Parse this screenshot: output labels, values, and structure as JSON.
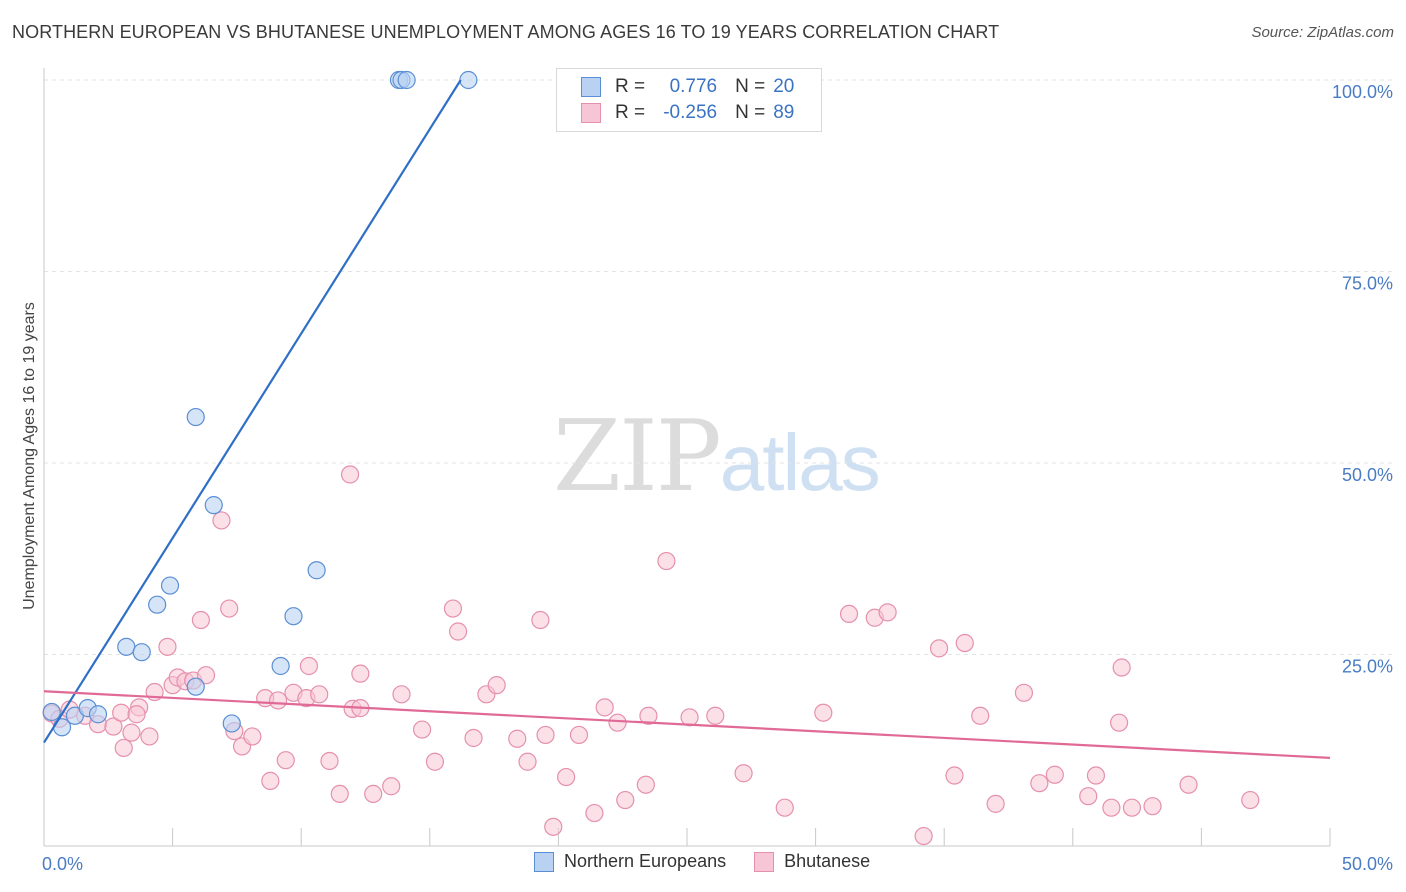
{
  "header": {
    "title": "NORTHERN EUROPEAN VS BHUTANESE UNEMPLOYMENT AMONG AGES 16 TO 19 YEARS CORRELATION CHART",
    "source": "Source: ZipAtlas.com"
  },
  "watermark": {
    "zip": "ZIP",
    "atlas": "atlas"
  },
  "legend_top": {
    "rows": [
      {
        "r_label": "R =",
        "r_value": "0.776",
        "n_label": "N =",
        "n_value": "20"
      },
      {
        "r_label": "R =",
        "r_value": "-0.256",
        "n_label": "N =",
        "n_value": "89"
      }
    ]
  },
  "legend_bottom": {
    "items": [
      "Northern Europeans",
      "Bhutanese"
    ]
  },
  "colors": {
    "blue_fill": "#b9d2f2",
    "blue_stroke": "#5b8fd4",
    "blue_line": "#2f6fc6",
    "pink_fill": "#f7c6d6",
    "pink_stroke": "#e590ad",
    "pink_line": "#e06a95",
    "tick_label": "#4a7cc4",
    "grid": "#e3e3e3"
  },
  "chart_data": {
    "type": "scatter",
    "title": "NORTHERN EUROPEAN VS BHUTANESE UNEMPLOYMENT AMONG AGES 16 TO 19 YEARS CORRELATION CHART",
    "xlabel": "",
    "ylabel": "Unemployment Among Ages 16 to 19 years",
    "xlim": [
      0,
      50
    ],
    "ylim": [
      0,
      100
    ],
    "x_tick_labels": [
      "0.0%",
      "50.0%"
    ],
    "y_ticks": [
      25,
      50,
      75,
      100
    ],
    "y_tick_labels": [
      "25.0%",
      "50.0%",
      "75.0%",
      "100.0%"
    ],
    "grid": true,
    "legend_position": "top-center",
    "series": [
      {
        "name": "Northern Europeans",
        "r": 0.776,
        "n": 20,
        "trend": {
          "x": [
            0,
            16.2
          ],
          "y": [
            13.5,
            100
          ]
        },
        "points": [
          [
            0.3,
            17.5
          ],
          [
            0.7,
            15.5
          ],
          [
            1.2,
            17.0
          ],
          [
            1.7,
            18.0
          ],
          [
            2.1,
            17.2
          ],
          [
            3.2,
            26.0
          ],
          [
            3.8,
            25.3
          ],
          [
            4.4,
            31.5
          ],
          [
            4.9,
            34.0
          ],
          [
            5.9,
            20.8
          ],
          [
            5.9,
            56.0
          ],
          [
            6.6,
            44.5
          ],
          [
            7.3,
            16.0
          ],
          [
            9.2,
            23.5
          ],
          [
            9.7,
            30.0
          ],
          [
            10.6,
            36.0
          ],
          [
            13.8,
            100
          ],
          [
            13.9,
            100
          ],
          [
            14.1,
            100
          ],
          [
            16.5,
            100
          ]
        ]
      },
      {
        "name": "Bhutanese",
        "r": -0.256,
        "n": 89,
        "trend": {
          "x": [
            0,
            50
          ],
          "y": [
            20.2,
            11.5
          ]
        },
        "points": [
          [
            0.3,
            17.3
          ],
          [
            0.6,
            16.6
          ],
          [
            1.0,
            17.8
          ],
          [
            1.6,
            17.0
          ],
          [
            2.1,
            15.9
          ],
          [
            2.7,
            15.6
          ],
          [
            3.0,
            17.4
          ],
          [
            3.1,
            12.8
          ],
          [
            3.4,
            14.8
          ],
          [
            3.7,
            18.1
          ],
          [
            4.1,
            14.3
          ],
          [
            4.3,
            20.1
          ],
          [
            4.8,
            26.0
          ],
          [
            5.0,
            21.0
          ],
          [
            5.2,
            22.0
          ],
          [
            5.5,
            21.5
          ],
          [
            5.8,
            21.6
          ],
          [
            6.1,
            29.5
          ],
          [
            6.3,
            22.3
          ],
          [
            6.9,
            42.5
          ],
          [
            7.2,
            31.0
          ],
          [
            7.4,
            15.0
          ],
          [
            7.7,
            13.0
          ],
          [
            8.1,
            14.3
          ],
          [
            8.6,
            19.3
          ],
          [
            8.8,
            8.5
          ],
          [
            9.1,
            19.0
          ],
          [
            9.4,
            11.2
          ],
          [
            9.7,
            20.0
          ],
          [
            10.3,
            23.5
          ],
          [
            10.2,
            19.3
          ],
          [
            10.7,
            19.8
          ],
          [
            11.1,
            11.1
          ],
          [
            11.5,
            6.8
          ],
          [
            11.9,
            48.5
          ],
          [
            12.0,
            17.9
          ],
          [
            12.3,
            22.5
          ],
          [
            12.8,
            6.8
          ],
          [
            13.5,
            7.8
          ],
          [
            13.9,
            19.8
          ],
          [
            14.7,
            15.2
          ],
          [
            15.2,
            11.0
          ],
          [
            15.9,
            31.0
          ],
          [
            16.1,
            28.0
          ],
          [
            16.7,
            14.1
          ],
          [
            17.2,
            19.8
          ],
          [
            17.6,
            21.0
          ],
          [
            18.4,
            14.0
          ],
          [
            18.8,
            11.0
          ],
          [
            19.3,
            29.5
          ],
          [
            19.5,
            14.5
          ],
          [
            19.8,
            2.5
          ],
          [
            20.3,
            9.0
          ],
          [
            20.8,
            14.5
          ],
          [
            21.4,
            4.3
          ],
          [
            21.8,
            18.1
          ],
          [
            22.3,
            16.1
          ],
          [
            22.6,
            6.0
          ],
          [
            23.4,
            8.0
          ],
          [
            24.2,
            37.2
          ],
          [
            25.1,
            16.8
          ],
          [
            26.1,
            17.0
          ],
          [
            27.2,
            9.5
          ],
          [
            28.8,
            5.0
          ],
          [
            30.3,
            17.4
          ],
          [
            31.3,
            30.3
          ],
          [
            32.3,
            29.8
          ],
          [
            32.8,
            30.5
          ],
          [
            34.2,
            1.3
          ],
          [
            34.8,
            25.8
          ],
          [
            35.4,
            9.2
          ],
          [
            35.8,
            26.5
          ],
          [
            36.4,
            17.0
          ],
          [
            37.0,
            5.5
          ],
          [
            38.1,
            20.0
          ],
          [
            38.7,
            8.2
          ],
          [
            39.3,
            9.3
          ],
          [
            40.6,
            6.5
          ],
          [
            40.9,
            9.2
          ],
          [
            41.5,
            5.0
          ],
          [
            41.8,
            16.1
          ],
          [
            41.9,
            23.3
          ],
          [
            42.3,
            5.0
          ],
          [
            43.1,
            5.2
          ],
          [
            44.5,
            8.0
          ],
          [
            46.9,
            6.0
          ],
          [
            3.6,
            17.2
          ],
          [
            12.3,
            18.0
          ],
          [
            23.5,
            17.0
          ]
        ]
      }
    ]
  }
}
